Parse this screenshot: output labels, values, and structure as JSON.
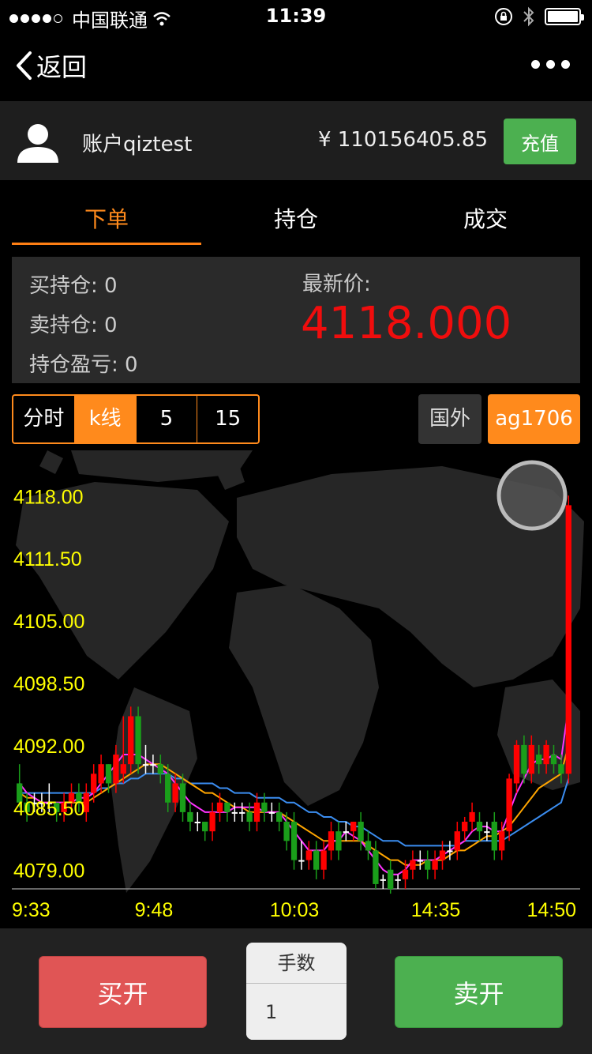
{
  "status_bar": {
    "carrier": "中国联通",
    "time": "11:39"
  },
  "nav": {
    "back_label": "返回"
  },
  "account": {
    "name": "账户qiztest",
    "balance": "¥ 110156405.85",
    "recharge_label": "充值"
  },
  "tabs": [
    {
      "label": "下单"
    },
    {
      "label": "持仓"
    },
    {
      "label": "成交"
    }
  ],
  "positions": {
    "buy": "买持仓: 0",
    "sell": "卖持仓: 0",
    "pnl": "持仓盈亏: 0",
    "latest_label": "最新价:",
    "latest_price": "4118.000"
  },
  "period_buttons": [
    {
      "label": "分时"
    },
    {
      "label": "k线"
    },
    {
      "label": "5"
    },
    {
      "label": "15"
    }
  ],
  "market_button": "国外",
  "symbol_button": "ag1706",
  "colors": {
    "accent": "#ff8a1c",
    "up": "#ff0000",
    "down": "#1a9e1a",
    "axis_label": "#ffff00",
    "ma_fast": "#ff33ff",
    "ma_mid": "#ffa500",
    "ma_slow": "#3b8df0"
  },
  "chart_data": {
    "type": "candlestick",
    "ylim": [
      4077,
      4120
    ],
    "y_ticks": [
      "4118.00",
      "4111.50",
      "4105.00",
      "4098.50",
      "4092.00",
      "4085.50",
      "4079.00"
    ],
    "x_ticks": [
      "9:33",
      "9:48",
      "10:03",
      "14:35",
      "14:50"
    ],
    "candles": [
      [
        4088,
        4086,
        4090,
        4085.5
      ],
      [
        4086,
        4085,
        4087,
        4084
      ],
      [
        4086,
        4086,
        4087,
        4085
      ],
      [
        4086,
        4086,
        4087,
        4085
      ],
      [
        4086,
        4086,
        4088,
        4085
      ],
      [
        4086,
        4085,
        4086,
        4084
      ],
      [
        4085,
        4086,
        4087,
        4084
      ],
      [
        4086,
        4087,
        4088,
        4085
      ],
      [
        4087,
        4086,
        4088,
        4085
      ],
      [
        4085,
        4087,
        4088,
        4084
      ],
      [
        4087,
        4089,
        4090,
        4086
      ],
      [
        4088,
        4090,
        4091,
        4087
      ],
      [
        4090,
        4088,
        4090,
        4087
      ],
      [
        4088,
        4091,
        4092,
        4087
      ],
      [
        4089,
        4090,
        4095,
        4088
      ],
      [
        4090,
        4095,
        4096,
        4089
      ],
      [
        4095,
        4090,
        4096,
        4089
      ],
      [
        4090,
        4090,
        4092,
        4089
      ],
      [
        4090,
        4090,
        4091,
        4089
      ],
      [
        4090,
        4089,
        4091,
        4088
      ],
      [
        4089,
        4086,
        4090,
        4085
      ],
      [
        4086,
        4088,
        4089,
        4085
      ],
      [
        4088,
        4085,
        4089,
        4084
      ],
      [
        4085,
        4084,
        4086,
        4083
      ],
      [
        4084,
        4084,
        4085,
        4083
      ],
      [
        4084,
        4083,
        4084,
        4082
      ],
      [
        4083,
        4085,
        4086,
        4082
      ],
      [
        4085,
        4086,
        4087,
        4084
      ],
      [
        4086,
        4085,
        4086,
        4084
      ],
      [
        4085,
        4085,
        4086,
        4084
      ],
      [
        4085,
        4085,
        4086,
        4084
      ],
      [
        4085,
        4084,
        4086,
        4083
      ],
      [
        4084,
        4086,
        4087,
        4083
      ],
      [
        4086,
        4085,
        4087,
        4084
      ],
      [
        4085,
        4085,
        4086,
        4084
      ],
      [
        4085,
        4084,
        4086,
        4083
      ],
      [
        4084,
        4082,
        4085,
        4081
      ],
      [
        4084,
        4080,
        4085,
        4079
      ],
      [
        4080,
        4080,
        4082,
        4079
      ],
      [
        4080,
        4081,
        4082,
        4079
      ],
      [
        4081,
        4079,
        4082,
        4078
      ],
      [
        4079,
        4081,
        4082,
        4078
      ],
      [
        4081,
        4083,
        4084,
        4080
      ],
      [
        4083,
        4081,
        4084,
        4080
      ],
      [
        4083,
        4083,
        4084,
        4082
      ],
      [
        4083,
        4084,
        4084,
        4082
      ],
      [
        4084,
        4082,
        4085,
        4081
      ],
      [
        4082,
        4081,
        4083,
        4080
      ],
      [
        4081,
        4077.5,
        4082,
        4077
      ],
      [
        4078,
        4078,
        4078.5,
        4077
      ],
      [
        4079,
        4077,
        4080,
        4076.5
      ],
      [
        4078,
        4078,
        4078.5,
        4077
      ],
      [
        4078,
        4079,
        4080,
        4077
      ],
      [
        4079,
        4080,
        4081,
        4078
      ],
      [
        4080,
        4080,
        4081,
        4079
      ],
      [
        4080,
        4079,
        4081,
        4078
      ],
      [
        4079,
        4080,
        4081,
        4078
      ],
      [
        4080,
        4081,
        4082,
        4079
      ],
      [
        4081,
        4081,
        4082,
        4080
      ],
      [
        4081,
        4083,
        4084,
        4080
      ],
      [
        4083,
        4084,
        4084.5,
        4082
      ],
      [
        4084,
        4085,
        4086,
        4083
      ],
      [
        4084,
        4083,
        4085,
        4082
      ],
      [
        4083,
        4083,
        4084,
        4082
      ],
      [
        4084,
        4081,
        4085,
        4080
      ],
      [
        4081,
        4083,
        4084,
        4080
      ],
      [
        4083,
        4088.5,
        4089,
        4082
      ],
      [
        4088,
        4092,
        4092.5,
        4087
      ],
      [
        4092,
        4089,
        4093,
        4088
      ],
      [
        4089,
        4092,
        4093,
        4088
      ],
      [
        4091,
        4090,
        4092,
        4089
      ],
      [
        4090,
        4092,
        4092.5,
        4089
      ],
      [
        4091,
        4090,
        4092,
        4089
      ],
      [
        4090,
        4089,
        4091,
        4088
      ],
      [
        4089,
        4117,
        4118,
        4088
      ]
    ],
    "ma_fast": [
      4088,
      4087,
      4086.5,
      4086,
      4086,
      4086,
      4086,
      4086,
      4086.5,
      4086.5,
      4087,
      4088,
      4089,
      4090,
      4091,
      4091,
      4091,
      4090.5,
      4090,
      4089.5,
      4089,
      4088,
      4087,
      4086,
      4085.5,
      4085,
      4085,
      4085,
      4085,
      4085.5,
      4085.5,
      4085.5,
      4085.5,
      4085,
      4085,
      4085,
      4084,
      4083,
      4082,
      4081,
      4081,
      4081,
      4082,
      4082,
      4083,
      4082.5,
      4082,
      4081,
      4080,
      4079,
      4078.5,
      4078.5,
      4079,
      4080,
      4080,
      4080,
      4080,
      4080.5,
      4081,
      4081.5,
      4082,
      4083,
      4083.5,
      4083.5,
      4083,
      4083,
      4085,
      4087,
      4088.5,
      4090,
      4090.5,
      4090.5,
      4091,
      4090.5,
      4096
    ],
    "ma_mid": [
      4087,
      4086.5,
      4086.5,
      4086,
      4086,
      4086,
      4086,
      4086,
      4086,
      4086,
      4086.5,
      4087,
      4087.5,
      4088,
      4088.5,
      4089,
      4089.5,
      4090,
      4090,
      4090,
      4089.5,
      4089,
      4088.5,
      4088,
      4087.5,
      4087,
      4087,
      4086.5,
      4086,
      4085.5,
      4085.5,
      4085,
      4085,
      4085,
      4085,
      4085,
      4084.5,
      4084,
      4083.5,
      4083,
      4082.5,
      4082,
      4082,
      4082,
      4082,
      4082,
      4082,
      4081.5,
      4081,
      4080.5,
      4080,
      4080,
      4079.5,
      4079.5,
      4079.5,
      4080,
      4080,
      4080,
      4080.5,
      4081,
      4081,
      4081.5,
      4082,
      4082.5,
      4082.5,
      4083,
      4083.5,
      4084.5,
      4085.5,
      4086.5,
      4087.5,
      4088,
      4088.5,
      4089,
      4092
    ],
    "ma_slow": [
      4087,
      4087,
      4087,
      4087,
      4087,
      4087,
      4087,
      4087,
      4087,
      4087,
      4087,
      4087.5,
      4087.5,
      4088,
      4088,
      4088.5,
      4088.5,
      4089,
      4089,
      4089,
      4089,
      4088.5,
      4088.5,
      4088,
      4088,
      4088,
      4088,
      4087.5,
      4087.5,
      4087,
      4087,
      4087,
      4086.5,
      4086.5,
      4086.5,
      4086.5,
      4086,
      4086,
      4085.5,
      4085,
      4085,
      4084.5,
      4084.5,
      4084,
      4084,
      4083.5,
      4083.5,
      4083,
      4082.5,
      4082,
      4082,
      4082,
      4081.5,
      4081.5,
      4081.5,
      4081.5,
      4081.5,
      4081.5,
      4081.5,
      4081.5,
      4082,
      4082,
      4082,
      4082,
      4082,
      4082,
      4082.5,
      4083,
      4083.5,
      4084,
      4084.5,
      4085,
      4085.5,
      4086,
      4088.5
    ]
  }
}
